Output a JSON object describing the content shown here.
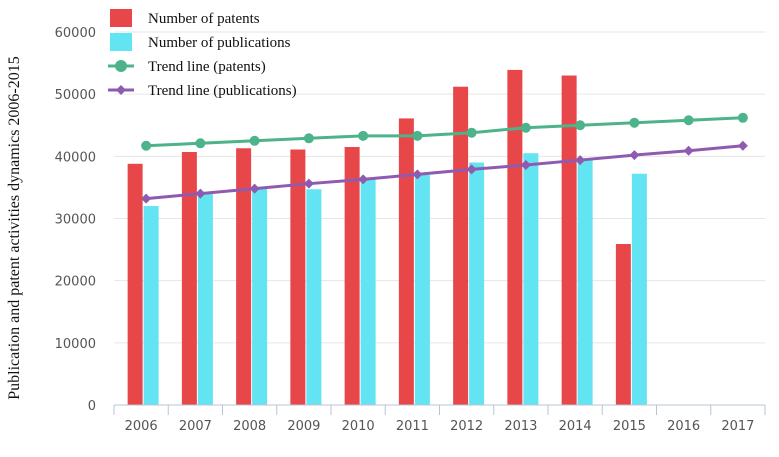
{
  "chart_data": {
    "type": "bar",
    "categories": [
      "2006",
      "2007",
      "2008",
      "2009",
      "2010",
      "2011",
      "2012",
      "2013",
      "2014",
      "2015",
      "2016",
      "2017"
    ],
    "series": [
      {
        "name": "Number of patents",
        "kind": "bar",
        "color": "#E8474A",
        "values": [
          38800,
          40700,
          41300,
          41100,
          41500,
          46100,
          51200,
          53900,
          53000,
          25900,
          null,
          null
        ]
      },
      {
        "name": "Number of publications",
        "kind": "bar",
        "color": "#62E4F2",
        "values": [
          32000,
          34100,
          34800,
          34700,
          36300,
          37000,
          39000,
          40500,
          39500,
          37200,
          null,
          null
        ]
      },
      {
        "name": "Trend line (patents)",
        "kind": "line",
        "color": "#4DB38A",
        "values": [
          41700,
          42100,
          42500,
          42900,
          43300,
          43300,
          43800,
          44600,
          45000,
          45400,
          45800,
          46200
        ]
      },
      {
        "name": "Trend line (publications)",
        "kind": "line",
        "color": "#8E5BB0",
        "values": [
          33200,
          34000,
          34800,
          35600,
          36300,
          37100,
          37900,
          38600,
          39400,
          40200,
          40900,
          41700
        ]
      }
    ],
    "yticks": [
      0,
      10000,
      20000,
      30000,
      40000,
      50000,
      60000
    ],
    "ylim": [
      0,
      60000
    ],
    "ylabel": "Publication and patent activities dynamics 2006-2015",
    "xlabel": "",
    "legend_position": "top-left",
    "grid": true
  }
}
